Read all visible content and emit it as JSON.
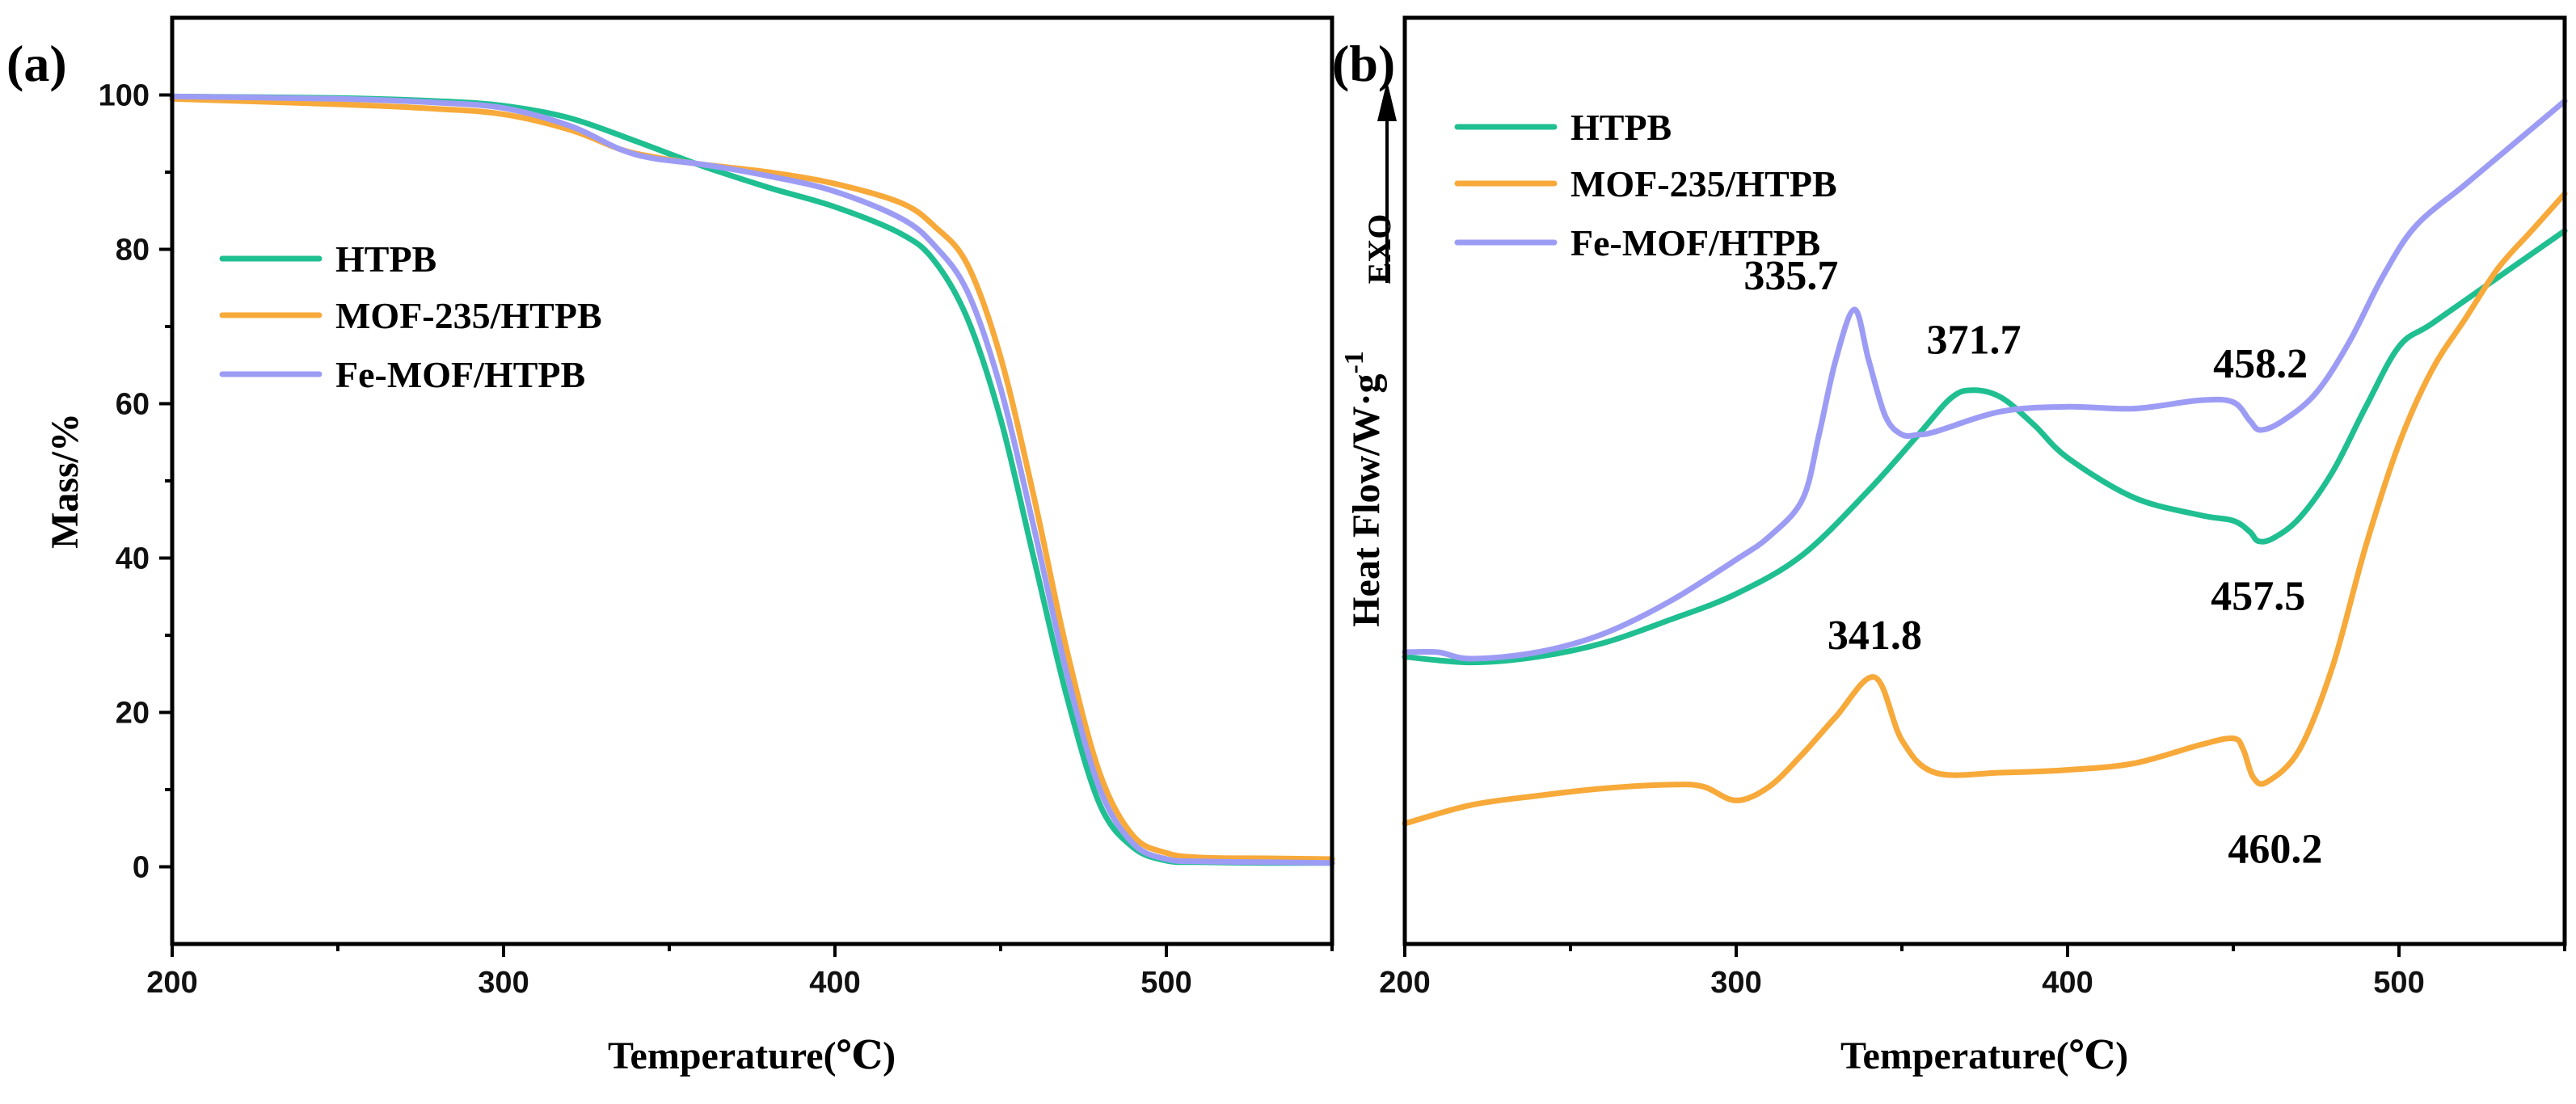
{
  "colors": {
    "HTPB": "#1fbf91",
    "MOF-235/HTPB": "#f7a93a",
    "Fe-MOF/HTPB": "#9d9cf5"
  },
  "chart_data": [
    {
      "type": "line",
      "panel_label": "(a)",
      "xlabel": "Temperature(℃)",
      "ylabel": "Mass/%",
      "xlim": [
        200,
        550
      ],
      "ylim": [
        -10,
        110
      ],
      "xticks": [
        200,
        300,
        400,
        500
      ],
      "xtick_labels": [
        "200",
        "300",
        "400",
        "500"
      ],
      "yticks": [
        0,
        20,
        40,
        60,
        80,
        100
      ],
      "ytick_labels": [
        "0",
        "20",
        "40",
        "60",
        "80",
        "100"
      ],
      "legend": [
        "HTPB",
        "MOF-235/HTPB",
        "Fe-MOF/HTPB"
      ],
      "legend_position": "upper-left",
      "series": [
        {
          "name": "HTPB",
          "x": [
            200,
            250,
            280,
            300,
            320,
            340,
            360,
            380,
            400,
            420,
            430,
            440,
            450,
            460,
            470,
            480,
            490,
            500,
            510,
            530,
            550
          ],
          "y": [
            99.8,
            99.6,
            99.2,
            98.6,
            97.0,
            94.0,
            90.8,
            88.0,
            85.5,
            82.0,
            78.5,
            71.0,
            58.0,
            40.0,
            22.0,
            8.0,
            2.5,
            0.8,
            0.6,
            0.5,
            0.5
          ]
        },
        {
          "name": "MOF-235/HTPB",
          "x": [
            200,
            250,
            280,
            300,
            320,
            335,
            345,
            360,
            380,
            400,
            420,
            430,
            440,
            450,
            460,
            470,
            480,
            490,
            500,
            510,
            530,
            550
          ],
          "y": [
            99.5,
            98.8,
            98.2,
            97.5,
            95.5,
            93.0,
            92.0,
            91.0,
            90.0,
            88.5,
            86.0,
            83.0,
            78.0,
            66.0,
            48.0,
            28.0,
            12.0,
            4.0,
            1.8,
            1.2,
            1.1,
            1.0
          ]
        },
        {
          "name": "Fe-MOF/HTPB",
          "x": [
            200,
            250,
            280,
            300,
            320,
            335,
            345,
            360,
            380,
            400,
            420,
            430,
            440,
            450,
            460,
            470,
            480,
            490,
            500,
            510,
            530,
            550
          ],
          "y": [
            99.8,
            99.5,
            99.0,
            98.3,
            96.0,
            93.0,
            91.8,
            91.0,
            89.5,
            87.5,
            84.0,
            80.5,
            74.5,
            62.0,
            44.0,
            25.0,
            10.0,
            3.0,
            1.0,
            0.7,
            0.6,
            0.5
          ]
        }
      ]
    },
    {
      "type": "line",
      "panel_label": "(b)",
      "xlabel": "Temperature(℃)",
      "ylabel": "Heat Flow/W·g-1",
      "ylabel_main": "Heat Flow/W·g",
      "ylabel_sup": "-1",
      "exo_label": "EXO",
      "xlim": [
        200,
        550
      ],
      "ylim": [
        0,
        100
      ],
      "xticks": [
        200,
        300,
        400,
        500
      ],
      "xtick_labels": [
        "200",
        "300",
        "400",
        "500"
      ],
      "legend": [
        "HTPB",
        "MOF-235/HTPB",
        "Fe-MOF/HTPB"
      ],
      "legend_position": "upper-left",
      "annotations": [
        {
          "text": "335.7",
          "x": 335.7,
          "series": "Fe-MOF/HTPB"
        },
        {
          "text": "371.7",
          "x": 371.7,
          "series": "HTPB"
        },
        {
          "text": "458.2",
          "x": 458.2,
          "series": "Fe-MOF/HTPB"
        },
        {
          "text": "457.5",
          "x": 457.5,
          "series": "HTPB"
        },
        {
          "text": "341.8",
          "x": 341.8,
          "series": "MOF-235/HTPB"
        },
        {
          "text": "460.2",
          "x": 460.2,
          "series": "MOF-235/HTPB"
        }
      ],
      "series": [
        {
          "name": "HTPB",
          "x": [
            200,
            220,
            240,
            260,
            280,
            300,
            320,
            340,
            355,
            365,
            371.7,
            380,
            390,
            400,
            420,
            440,
            450,
            455,
            457.5,
            462,
            470,
            480,
            490,
            500,
            510,
            530,
            550
          ],
          "y": [
            31,
            30.4,
            31,
            32.5,
            35,
            37.8,
            42,
            49,
            55,
            59,
            59.8,
            59,
            56,
            52.5,
            48.2,
            46.3,
            45.7,
            44.5,
            43.5,
            43.8,
            46,
            51,
            58,
            64.5,
            67,
            72,
            77
          ]
        },
        {
          "name": "MOF-235/HTPB",
          "x": [
            200,
            220,
            240,
            260,
            280,
            290,
            300,
            310,
            320,
            330,
            341.8,
            350,
            360,
            380,
            400,
            420,
            440,
            450,
            453,
            456,
            460.2,
            470,
            480,
            490,
            500,
            510,
            520,
            530,
            540,
            550
          ],
          "y": [
            13,
            15,
            16,
            16.8,
            17.2,
            17,
            15.5,
            17,
            20.5,
            24.5,
            28.8,
            22,
            18.5,
            18.5,
            18.8,
            19.5,
            21.5,
            22.2,
            21,
            18,
            17.5,
            21,
            30,
            43,
            54,
            62,
            67.5,
            73,
            77,
            81
          ]
        },
        {
          "name": "Fe-MOF/HTPB",
          "x": [
            200,
            210,
            220,
            240,
            260,
            280,
            300,
            310,
            320,
            325,
            330,
            335.7,
            340,
            345,
            350,
            355,
            360,
            380,
            400,
            420,
            440,
            450,
            455,
            458.2,
            465,
            475,
            485,
            495,
            505,
            520,
            535,
            550
          ],
          "y": [
            31.5,
            31.5,
            30.8,
            31.5,
            33.5,
            37,
            41.5,
            44,
            48,
            55,
            63,
            68.5,
            63,
            57,
            55,
            55,
            55.3,
            57.5,
            58,
            57.8,
            58.7,
            58.5,
            56.5,
            55.5,
            56.5,
            59.5,
            65,
            72,
            77.5,
            82,
            86.5,
            91
          ]
        }
      ]
    }
  ]
}
